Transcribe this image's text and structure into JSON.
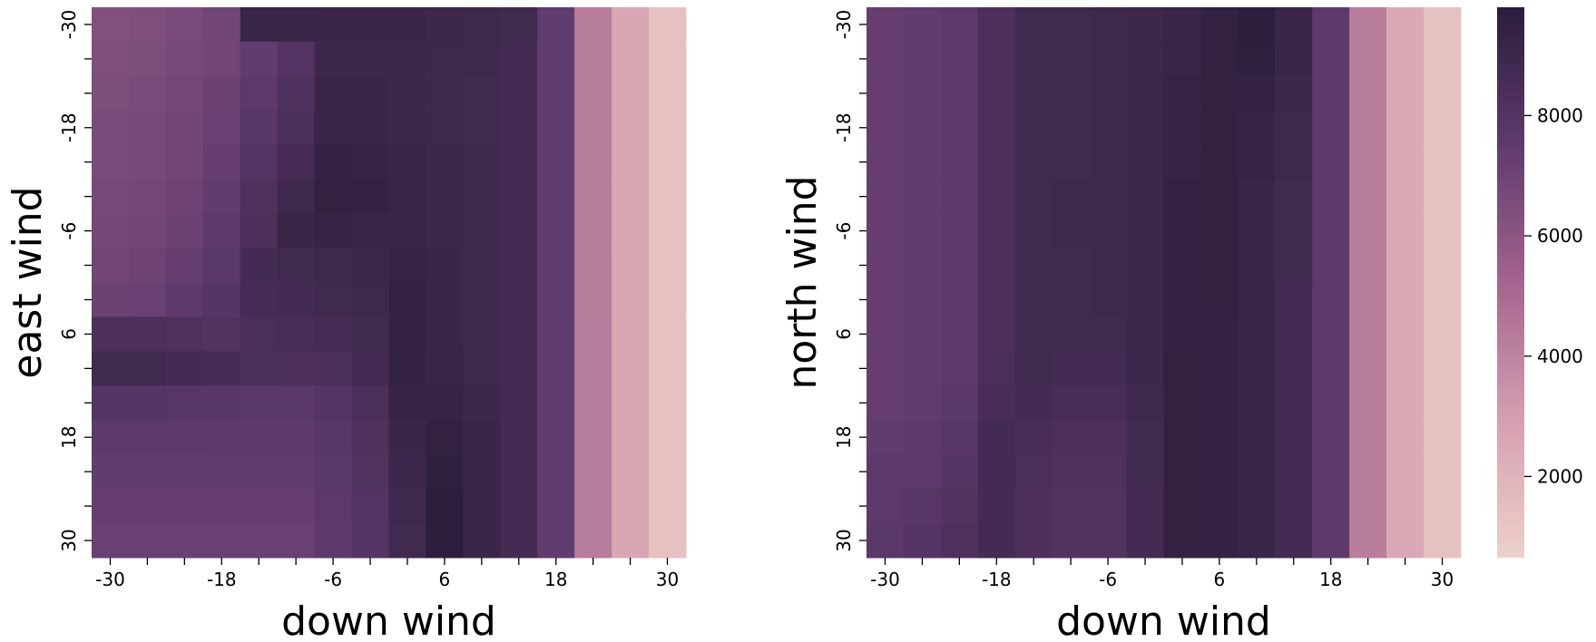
{
  "chart_data": [
    {
      "type": "heatmap",
      "xlabel": "down wind",
      "ylabel": "east wind",
      "xcategories": [
        -30,
        null,
        null,
        -18,
        null,
        null,
        -6,
        null,
        null,
        6,
        null,
        null,
        18,
        null,
        null,
        30
      ],
      "ycategories": [
        -30,
        null,
        null,
        -18,
        null,
        null,
        -6,
        null,
        null,
        6,
        null,
        null,
        18,
        null,
        null,
        30
      ],
      "clim": [
        650,
        9800
      ],
      "colormap": [
        "#edd1cb",
        "#d69fb0",
        "#a4648e",
        "#5e3a6c",
        "#2b1d3b"
      ],
      "values": [
        [
          6300,
          6400,
          6600,
          6900,
          9200,
          9200,
          9100,
          9100,
          9100,
          9000,
          8900,
          8800,
          7400,
          4200,
          2600,
          1400
        ],
        [
          6400,
          6500,
          6700,
          6900,
          7400,
          8000,
          9000,
          9000,
          9000,
          8900,
          8900,
          8700,
          7400,
          4200,
          2600,
          1400
        ],
        [
          6500,
          6600,
          6800,
          7100,
          7600,
          8200,
          9100,
          9100,
          9000,
          8900,
          8800,
          8700,
          7400,
          4200,
          2600,
          1400
        ],
        [
          6600,
          6700,
          6900,
          7200,
          7800,
          8400,
          9200,
          9100,
          9000,
          8900,
          8800,
          8700,
          7400,
          4200,
          2600,
          1400
        ],
        [
          6600,
          6700,
          6900,
          7300,
          8000,
          8600,
          9400,
          9300,
          9100,
          9000,
          8900,
          8700,
          7400,
          4200,
          2600,
          1400
        ],
        [
          6700,
          6800,
          7000,
          7400,
          8200,
          8900,
          9500,
          9400,
          9200,
          9000,
          8900,
          8700,
          7400,
          4200,
          2600,
          1400
        ],
        [
          6800,
          6900,
          7100,
          7500,
          8300,
          9100,
          9300,
          9200,
          9200,
          9000,
          8900,
          8700,
          7400,
          4200,
          2600,
          1400
        ],
        [
          6900,
          7000,
          7300,
          7700,
          8700,
          8800,
          8900,
          9000,
          9300,
          9100,
          8900,
          8700,
          7400,
          4200,
          2600,
          1400
        ],
        [
          7100,
          7200,
          7500,
          7900,
          8600,
          8700,
          8800,
          8900,
          9400,
          9100,
          8900,
          8700,
          7400,
          4200,
          2600,
          1400
        ],
        [
          8300,
          8300,
          8200,
          8100,
          8400,
          8500,
          8600,
          8800,
          9400,
          9100,
          8900,
          8700,
          7400,
          4300,
          2600,
          1400
        ],
        [
          8800,
          8800,
          8700,
          8600,
          8400,
          8300,
          8400,
          8700,
          9400,
          9200,
          8900,
          8700,
          7400,
          4300,
          2600,
          1400
        ],
        [
          7900,
          7900,
          7800,
          7800,
          7700,
          7700,
          8000,
          8400,
          9300,
          9300,
          9000,
          8700,
          7400,
          4300,
          2600,
          1400
        ],
        [
          7600,
          7600,
          7600,
          7500,
          7500,
          7500,
          7800,
          8200,
          9100,
          9500,
          9100,
          8700,
          7400,
          4300,
          2600,
          1400
        ],
        [
          7400,
          7400,
          7400,
          7400,
          7400,
          7400,
          7700,
          8100,
          9000,
          9600,
          9100,
          8700,
          7400,
          4300,
          2600,
          1400
        ],
        [
          7300,
          7300,
          7300,
          7300,
          7300,
          7300,
          7600,
          8000,
          8900,
          9700,
          9100,
          8700,
          7400,
          4300,
          2600,
          1400
        ],
        [
          7200,
          7200,
          7200,
          7200,
          7200,
          7200,
          7500,
          7900,
          8800,
          9700,
          9100,
          8700,
          7400,
          4300,
          2600,
          1400
        ]
      ]
    },
    {
      "type": "heatmap",
      "xlabel": "down wind",
      "ylabel": "north wind",
      "xcategories": [
        -30,
        null,
        null,
        -18,
        null,
        null,
        -6,
        null,
        null,
        6,
        null,
        null,
        18,
        null,
        null,
        30
      ],
      "ycategories": [
        -30,
        null,
        null,
        -18,
        null,
        null,
        -6,
        null,
        null,
        6,
        null,
        null,
        18,
        null,
        null,
        30
      ],
      "clim": [
        650,
        9800
      ],
      "colormap": [
        "#edd1cb",
        "#d69fb0",
        "#a4648e",
        "#5e3a6c",
        "#2b1d3b"
      ],
      "colorbar_ticks": [
        2000,
        4000,
        6000,
        8000
      ],
      "values": [
        [
          7300,
          7400,
          7600,
          8300,
          8800,
          8800,
          8900,
          9000,
          9200,
          9500,
          9700,
          9100,
          7500,
          4200,
          2500,
          1300
        ],
        [
          7300,
          7400,
          7600,
          8300,
          8800,
          8800,
          8900,
          9000,
          9200,
          9500,
          9600,
          9100,
          7500,
          4200,
          2500,
          1300
        ],
        [
          7300,
          7400,
          7600,
          8300,
          8800,
          8800,
          8900,
          9000,
          9300,
          9500,
          9400,
          9000,
          7500,
          4200,
          2500,
          1300
        ],
        [
          7300,
          7400,
          7600,
          8300,
          8800,
          8800,
          8900,
          9000,
          9300,
          9500,
          9300,
          8900,
          7500,
          4200,
          2500,
          1300
        ],
        [
          7300,
          7400,
          7600,
          8300,
          8800,
          8800,
          8900,
          9000,
          9300,
          9500,
          9300,
          8900,
          7500,
          4200,
          2500,
          1300
        ],
        [
          7300,
          7400,
          7600,
          8300,
          8800,
          8900,
          8900,
          9000,
          9400,
          9500,
          9200,
          8800,
          7500,
          4200,
          2500,
          1300
        ],
        [
          7300,
          7400,
          7600,
          8300,
          8800,
          8900,
          8900,
          9000,
          9400,
          9500,
          9200,
          8800,
          7500,
          4200,
          2500,
          1300
        ],
        [
          7300,
          7400,
          7600,
          8300,
          8800,
          8800,
          8900,
          9000,
          9400,
          9500,
          9200,
          8800,
          7500,
          4200,
          2500,
          1300
        ],
        [
          7300,
          7400,
          7600,
          8300,
          8800,
          8800,
          8900,
          9000,
          9400,
          9500,
          9200,
          8700,
          7500,
          4200,
          2500,
          1300
        ],
        [
          7300,
          7400,
          7600,
          8300,
          8800,
          8800,
          8800,
          9000,
          9400,
          9400,
          9200,
          8700,
          7500,
          4200,
          2500,
          1300
        ],
        [
          7300,
          7400,
          7600,
          8400,
          8800,
          8700,
          8700,
          9000,
          9500,
          9400,
          9200,
          8700,
          7500,
          4200,
          2500,
          1300
        ],
        [
          7300,
          7400,
          7700,
          8500,
          8700,
          8500,
          8500,
          8900,
          9500,
          9400,
          9200,
          8700,
          7500,
          4200,
          2500,
          1300
        ],
        [
          7400,
          7500,
          7800,
          8700,
          8500,
          8300,
          8300,
          8800,
          9500,
          9400,
          9200,
          8700,
          7500,
          4200,
          2500,
          1300
        ],
        [
          7500,
          7600,
          7900,
          8700,
          8400,
          8200,
          8200,
          8800,
          9500,
          9400,
          9200,
          8700,
          7500,
          4200,
          2500,
          1300
        ],
        [
          7600,
          7800,
          8100,
          8700,
          8300,
          8100,
          8100,
          8700,
          9500,
          9400,
          9200,
          8700,
          7500,
          4200,
          2500,
          1300
        ],
        [
          7700,
          7900,
          8200,
          8700,
          8300,
          8100,
          8100,
          8700,
          9500,
          9400,
          9200,
          8700,
          7500,
          4200,
          2500,
          1300
        ]
      ]
    }
  ]
}
